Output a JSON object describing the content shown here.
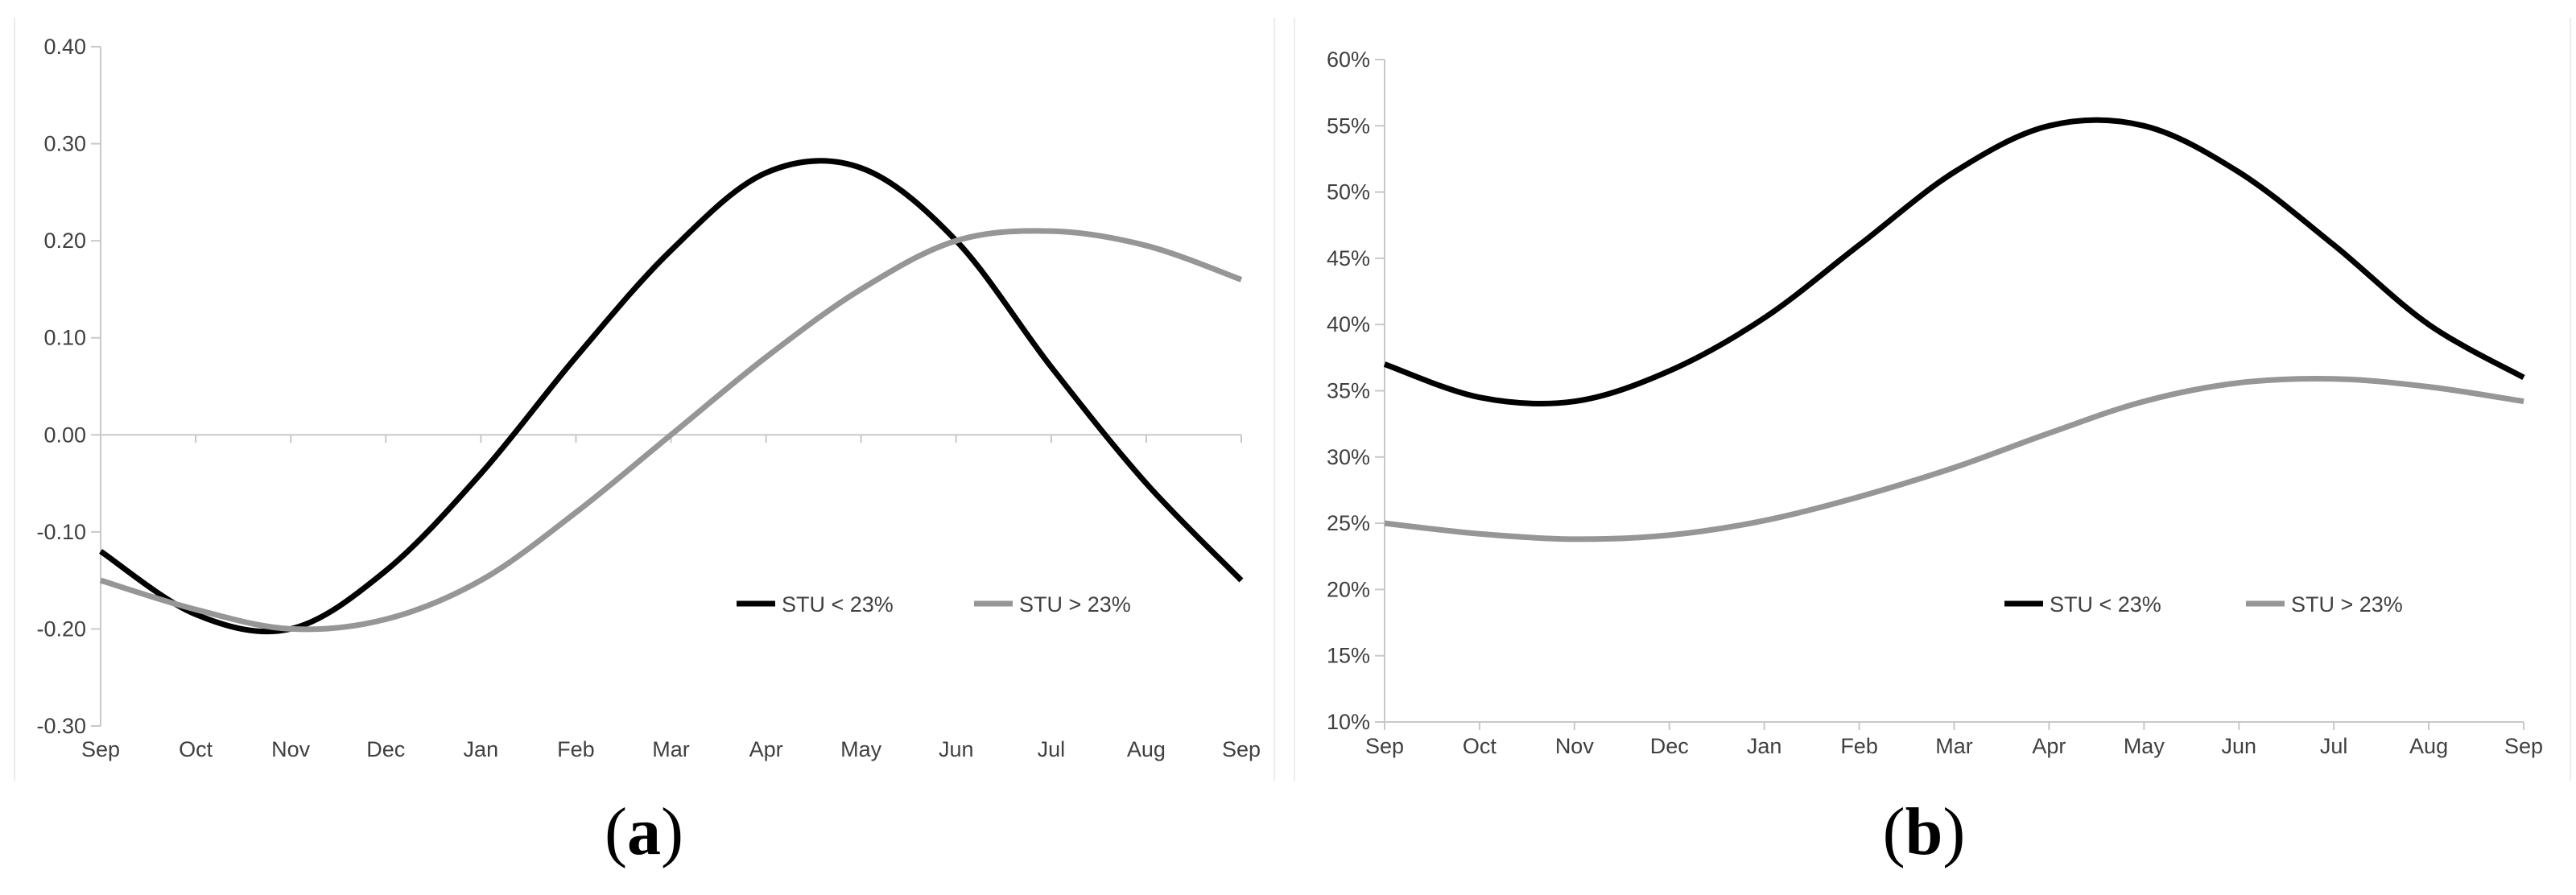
{
  "chart_data": [
    {
      "type": "line",
      "caption": "a",
      "x": [
        "Sep",
        "Oct",
        "Nov",
        "Dec",
        "Jan",
        "Feb",
        "Mar",
        "Apr",
        "May",
        "Jun",
        "Jul",
        "Aug",
        "Sep"
      ],
      "ylim": [
        -0.3,
        0.4
      ],
      "yticks": [
        "0.40",
        "0.30",
        "0.20",
        "0.10",
        "0.00",
        "-0.10",
        "-0.20",
        "-0.30"
      ],
      "yticks_values": [
        0.4,
        0.3,
        0.2,
        0.1,
        0.0,
        -0.1,
        -0.2,
        -0.3
      ],
      "grid": false,
      "legend_position": "bottom-right",
      "series": [
        {
          "name": "STU < 23%",
          "color": "#000000",
          "values": [
            -0.12,
            -0.185,
            -0.2,
            -0.14,
            -0.04,
            0.08,
            0.19,
            0.27,
            0.275,
            0.2,
            0.07,
            -0.05,
            -0.15
          ]
        },
        {
          "name": "STU > 23%",
          "color": "#969696",
          "values": [
            -0.15,
            -0.18,
            -0.2,
            -0.19,
            -0.15,
            -0.08,
            0.0,
            0.08,
            0.15,
            0.2,
            0.21,
            0.195,
            0.16
          ]
        }
      ]
    },
    {
      "type": "line",
      "caption": "b",
      "x": [
        "Sep",
        "Oct",
        "Nov",
        "Dec",
        "Jan",
        "Feb",
        "Mar",
        "Apr",
        "May",
        "Jun",
        "Jul",
        "Aug",
        "Sep"
      ],
      "ylim": [
        10,
        60
      ],
      "yticks": [
        "60%",
        "55%",
        "50%",
        "45%",
        "40%",
        "35%",
        "30%",
        "25%",
        "20%",
        "15%",
        "10%"
      ],
      "yticks_values": [
        60,
        55,
        50,
        45,
        40,
        35,
        30,
        25,
        20,
        15,
        10
      ],
      "grid": false,
      "legend_position": "bottom-right",
      "series": [
        {
          "name": "STU < 23%",
          "color": "#000000",
          "values": [
            37,
            34.5,
            34.2,
            36.5,
            40.5,
            46,
            51.5,
            55,
            55,
            51.5,
            46,
            40,
            36
          ]
        },
        {
          "name": "STU > 23%",
          "color": "#969696",
          "values": [
            25,
            24.2,
            23.8,
            24.1,
            25.2,
            27,
            29.2,
            31.8,
            34.2,
            35.6,
            35.9,
            35.3,
            34.2
          ]
        }
      ]
    }
  ]
}
